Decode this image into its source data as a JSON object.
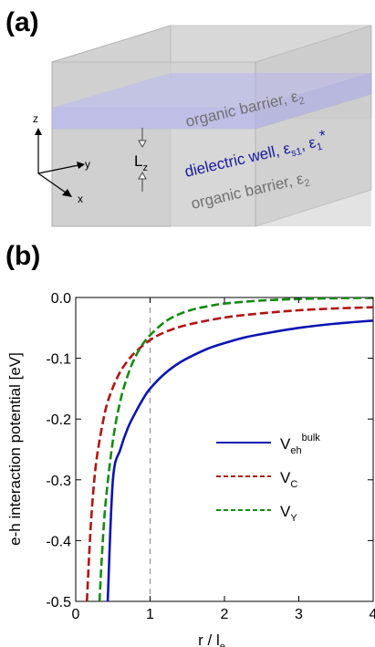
{
  "panel_a": {
    "label": "(a)",
    "top_layer": {
      "text": "organic barrier, ",
      "symbol": "ε",
      "sub": "2"
    },
    "well_layer": {
      "text": "dielectric well, ",
      "symbol1": "ε",
      "sub1": "s1",
      "sep": ", ",
      "symbol2": "ε",
      "sub2": "1",
      "sup2": "*"
    },
    "bottom_layer": {
      "text": "organic barrier, ",
      "symbol": "ε",
      "sub": "2"
    },
    "thickness_label": {
      "main": "L",
      "sub": "z"
    },
    "axes": {
      "z": "z",
      "y": "y",
      "x": "x"
    }
  },
  "panel_b": {
    "label": "(b)"
  },
  "chart_data": {
    "type": "line",
    "xlabel": {
      "main": "r / l",
      "sub": "e"
    },
    "ylabel": "e-h interaction potential [eV]",
    "xlim": [
      0,
      4
    ],
    "ylim": [
      -0.5,
      0.0
    ],
    "xticks": [
      "0",
      "1",
      "2",
      "3",
      "4"
    ],
    "yticks": [
      "0.0",
      "-0.1",
      "-0.2",
      "-0.3",
      "-0.4",
      "-0.5"
    ],
    "vline_x": 1,
    "grid": false,
    "legend_position": "center-right",
    "series": [
      {
        "name": "V_eh^bulk",
        "legend": {
          "main": "V",
          "sub": "eh",
          "sup": "bulk"
        },
        "color": "#0a14b4",
        "dash": "solid",
        "x": [
          0.43,
          0.5,
          0.6,
          0.7,
          0.8,
          0.9,
          1.0,
          1.2,
          1.4,
          1.6,
          1.8,
          2.0,
          2.3,
          2.6,
          3.0,
          3.5,
          4.0
        ],
        "y": [
          -0.5,
          -0.3,
          -0.25,
          -0.215,
          -0.19,
          -0.168,
          -0.15,
          -0.125,
          -0.107,
          -0.094,
          -0.083,
          -0.075,
          -0.065,
          -0.058,
          -0.05,
          -0.043,
          -0.038
        ]
      },
      {
        "name": "V_C",
        "legend": {
          "main": "V",
          "sub": "C",
          "sup": ""
        },
        "color": "#b41414",
        "dash": "dashed",
        "x": [
          0.15,
          0.2,
          0.25,
          0.3,
          0.4,
          0.5,
          0.6,
          0.7,
          0.8,
          1.0,
          1.2,
          1.5,
          2.0,
          2.5,
          3.0,
          3.5,
          4.0
        ],
        "y": [
          -0.5,
          -0.38,
          -0.3,
          -0.25,
          -0.185,
          -0.148,
          -0.122,
          -0.104,
          -0.09,
          -0.07,
          -0.057,
          -0.045,
          -0.033,
          -0.026,
          -0.021,
          -0.018,
          -0.016
        ]
      },
      {
        "name": "V_Y",
        "legend": {
          "main": "V",
          "sub": "Y",
          "sup": ""
        },
        "color": "#148c14",
        "dash": "dashed",
        "x": [
          0.32,
          0.35,
          0.4,
          0.5,
          0.6,
          0.7,
          0.8,
          0.9,
          1.0,
          1.2,
          1.4,
          1.6,
          1.8,
          2.0,
          2.5,
          3.0,
          3.5,
          4.0
        ],
        "y": [
          -0.5,
          -0.43,
          -0.34,
          -0.235,
          -0.17,
          -0.128,
          -0.098,
          -0.077,
          -0.062,
          -0.04,
          -0.027,
          -0.019,
          -0.014,
          -0.01,
          -0.005,
          -0.0025,
          -0.0012,
          -0.0006
        ]
      }
    ]
  }
}
